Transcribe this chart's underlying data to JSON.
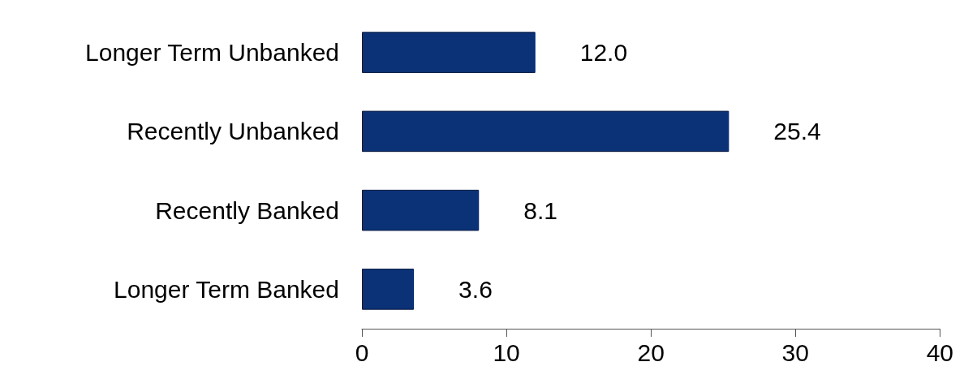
{
  "chart_data": {
    "type": "bar",
    "orientation": "horizontal",
    "categories": [
      "Longer Term Unbanked",
      "Recently Unbanked",
      "Recently Banked",
      "Longer Term Banked"
    ],
    "values": [
      12.0,
      25.4,
      8.1,
      3.6
    ],
    "value_labels": [
      "12.0",
      "25.4",
      "8.1",
      "3.6"
    ],
    "color": "#0b3277",
    "xlim": [
      0,
      40
    ],
    "xticks": [
      0,
      10,
      20,
      30,
      40
    ],
    "grid": false
  }
}
